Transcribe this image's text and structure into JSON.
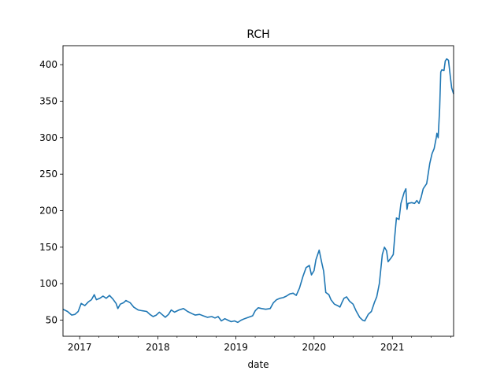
{
  "chart_data": {
    "type": "line",
    "title": "RCH",
    "xlabel": "date",
    "ylabel": "",
    "xlim": [
      "2016-10-15",
      "2021-10-14"
    ],
    "ylim": [
      28,
      426
    ],
    "grid": false,
    "x_ticks": [
      {
        "label": "2017",
        "date": "2017-01-01"
      },
      {
        "label": "2018",
        "date": "2018-01-01"
      },
      {
        "label": "2019",
        "date": "2019-01-01"
      },
      {
        "label": "2020",
        "date": "2020-01-01"
      },
      {
        "label": "2021",
        "date": "2021-01-01"
      }
    ],
    "y_ticks": [
      50,
      100,
      150,
      200,
      250,
      300,
      350,
      400
    ],
    "series": [
      {
        "color": "#1f77b4",
        "points": [
          [
            "2016-10-15",
            65
          ],
          [
            "2016-11-05",
            62
          ],
          [
            "2016-11-25",
            57
          ],
          [
            "2016-12-10",
            58
          ],
          [
            "2016-12-25",
            62
          ],
          [
            "2017-01-08",
            73
          ],
          [
            "2017-01-25",
            70
          ],
          [
            "2017-02-10",
            75
          ],
          [
            "2017-02-25",
            78
          ],
          [
            "2017-03-10",
            85
          ],
          [
            "2017-03-20",
            78
          ],
          [
            "2017-04-05",
            80
          ],
          [
            "2017-04-20",
            83
          ],
          [
            "2017-05-05",
            80
          ],
          [
            "2017-05-20",
            84
          ],
          [
            "2017-06-05",
            79
          ],
          [
            "2017-06-20",
            73
          ],
          [
            "2017-06-28",
            66
          ],
          [
            "2017-07-10",
            72
          ],
          [
            "2017-07-25",
            74
          ],
          [
            "2017-08-05",
            77
          ],
          [
            "2017-08-25",
            74
          ],
          [
            "2017-09-10",
            68
          ],
          [
            "2017-10-01",
            64
          ],
          [
            "2017-10-20",
            63
          ],
          [
            "2017-11-10",
            62
          ],
          [
            "2017-11-25",
            58
          ],
          [
            "2017-12-10",
            55
          ],
          [
            "2017-12-25",
            57
          ],
          [
            "2018-01-08",
            61
          ],
          [
            "2018-01-20",
            58
          ],
          [
            "2018-02-05",
            54
          ],
          [
            "2018-02-20",
            58
          ],
          [
            "2018-03-05",
            64
          ],
          [
            "2018-03-20",
            61
          ],
          [
            "2018-04-10",
            64
          ],
          [
            "2018-05-01",
            66
          ],
          [
            "2018-05-20",
            62
          ],
          [
            "2018-06-10",
            59
          ],
          [
            "2018-06-25",
            57
          ],
          [
            "2018-07-15",
            58
          ],
          [
            "2018-08-01",
            56
          ],
          [
            "2018-08-20",
            54
          ],
          [
            "2018-09-10",
            55
          ],
          [
            "2018-09-25",
            53
          ],
          [
            "2018-10-10",
            55
          ],
          [
            "2018-10-25",
            49
          ],
          [
            "2018-11-10",
            52
          ],
          [
            "2018-11-25",
            50
          ],
          [
            "2018-12-10",
            48
          ],
          [
            "2018-12-25",
            49
          ],
          [
            "2019-01-10",
            47
          ],
          [
            "2019-01-25",
            50
          ],
          [
            "2019-02-10",
            52
          ],
          [
            "2019-03-01",
            54
          ],
          [
            "2019-03-20",
            56
          ],
          [
            "2019-04-01",
            63
          ],
          [
            "2019-04-15",
            67
          ],
          [
            "2019-05-01",
            66
          ],
          [
            "2019-05-20",
            65
          ],
          [
            "2019-06-10",
            66
          ],
          [
            "2019-06-25",
            74
          ],
          [
            "2019-07-10",
            78
          ],
          [
            "2019-07-25",
            80
          ],
          [
            "2019-08-10",
            81
          ],
          [
            "2019-08-25",
            83
          ],
          [
            "2019-09-10",
            86
          ],
          [
            "2019-09-25",
            87
          ],
          [
            "2019-10-10",
            84
          ],
          [
            "2019-10-25",
            94
          ],
          [
            "2019-11-10",
            110
          ],
          [
            "2019-11-25",
            122
          ],
          [
            "2019-12-10",
            125
          ],
          [
            "2019-12-20",
            112
          ],
          [
            "2020-01-01",
            118
          ],
          [
            "2020-01-10",
            133
          ],
          [
            "2020-01-25",
            146
          ],
          [
            "2020-02-05",
            130
          ],
          [
            "2020-02-15",
            117
          ],
          [
            "2020-02-25",
            88
          ],
          [
            "2020-03-10",
            85
          ],
          [
            "2020-03-20",
            78
          ],
          [
            "2020-04-05",
            72
          ],
          [
            "2020-04-20",
            70
          ],
          [
            "2020-05-01",
            68
          ],
          [
            "2020-05-10",
            74
          ],
          [
            "2020-05-20",
            80
          ],
          [
            "2020-06-01",
            82
          ],
          [
            "2020-06-15",
            76
          ],
          [
            "2020-07-01",
            72
          ],
          [
            "2020-07-15",
            63
          ],
          [
            "2020-08-01",
            54
          ],
          [
            "2020-08-15",
            50
          ],
          [
            "2020-08-25",
            49
          ],
          [
            "2020-09-10",
            58
          ],
          [
            "2020-09-25",
            62
          ],
          [
            "2020-10-10",
            75
          ],
          [
            "2020-10-20",
            82
          ],
          [
            "2020-11-01",
            100
          ],
          [
            "2020-11-15",
            140
          ],
          [
            "2020-11-25",
            150
          ],
          [
            "2020-12-05",
            145
          ],
          [
            "2020-12-12",
            130
          ],
          [
            "2020-12-25",
            135
          ],
          [
            "2021-01-05",
            140
          ],
          [
            "2021-01-12",
            165
          ],
          [
            "2021-01-20",
            190
          ],
          [
            "2021-02-01",
            188
          ],
          [
            "2021-02-10",
            210
          ],
          [
            "2021-02-25",
            225
          ],
          [
            "2021-03-05",
            230
          ],
          [
            "2021-03-10",
            202
          ],
          [
            "2021-03-15",
            210
          ],
          [
            "2021-04-01",
            211
          ],
          [
            "2021-04-15",
            210
          ],
          [
            "2021-04-25",
            214
          ],
          [
            "2021-05-05",
            210
          ],
          [
            "2021-05-15",
            218
          ],
          [
            "2021-05-25",
            230
          ],
          [
            "2021-06-10",
            237
          ],
          [
            "2021-06-25",
            265
          ],
          [
            "2021-07-05",
            278
          ],
          [
            "2021-07-15",
            285
          ],
          [
            "2021-07-25",
            300
          ],
          [
            "2021-07-28",
            306
          ],
          [
            "2021-08-03",
            300
          ],
          [
            "2021-08-10",
            340
          ],
          [
            "2021-08-15",
            390
          ],
          [
            "2021-08-20",
            393
          ],
          [
            "2021-08-30",
            392
          ],
          [
            "2021-09-05",
            405
          ],
          [
            "2021-09-12",
            408
          ],
          [
            "2021-09-20",
            406
          ],
          [
            "2021-09-28",
            385
          ],
          [
            "2021-10-05",
            368
          ],
          [
            "2021-10-14",
            360
          ]
        ]
      }
    ]
  }
}
